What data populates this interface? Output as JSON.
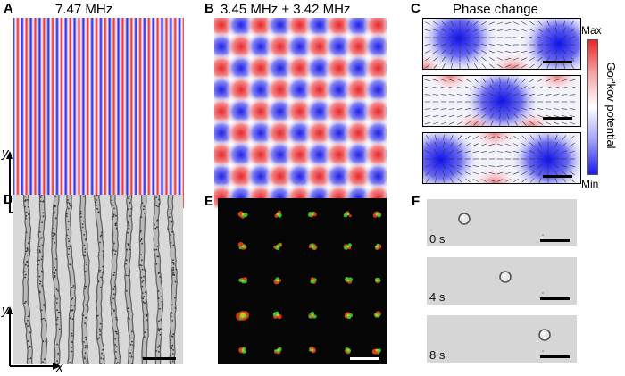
{
  "figure": {
    "panels": [
      {
        "id": "A",
        "label": "A",
        "title": "7.47 MHz"
      },
      {
        "id": "B",
        "label": "B",
        "title": "3.45 MHz + 3.42 MHz"
      },
      {
        "id": "C",
        "label": "C",
        "title": "Phase change"
      },
      {
        "id": "D",
        "label": "D"
      },
      {
        "id": "E",
        "label": "E"
      },
      {
        "id": "F",
        "label": "F"
      }
    ],
    "axes": {
      "x": "x",
      "y": "y"
    },
    "colorbar": {
      "label": "Gor'kov potential",
      "max": "Max",
      "min": "Min",
      "colors": {
        "max": "#e8262a",
        "mid": "#ffffff",
        "min": "#1a1aee"
      }
    },
    "timestamps": [
      "0 s",
      "4 s",
      "8 s"
    ],
    "colors": {
      "red": "#e8262a",
      "blue": "#1f1fe8",
      "dark_bg": "#050505",
      "micro_bg": "#d9d9d9",
      "green": "#33cc33"
    }
  }
}
